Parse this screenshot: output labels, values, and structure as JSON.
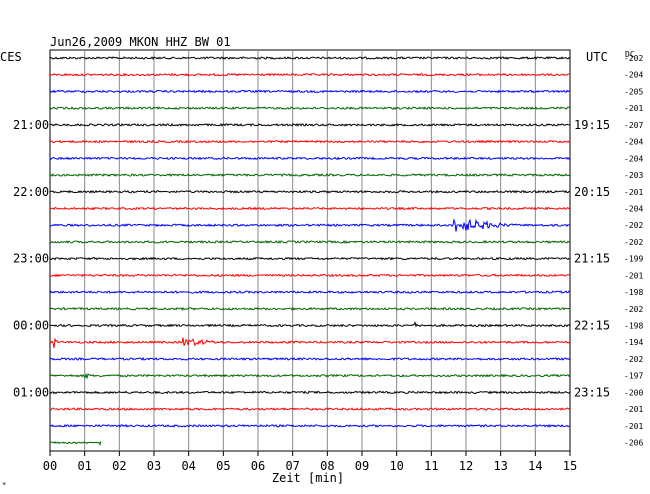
{
  "header": {
    "title": "Jun26,2009  MKON HHZ BW 01",
    "left_tz": "CES",
    "right_tz": "UTC",
    "dc_label": "DC"
  },
  "chart_data": {
    "type": "seismogram",
    "xlabel": "Zeit [min]",
    "xlim": [
      0,
      15
    ],
    "x_ticks": [
      "00",
      "01",
      "02",
      "03",
      "04",
      "05",
      "06",
      "07",
      "08",
      "09",
      "10",
      "11",
      "12",
      "13",
      "14",
      "15"
    ],
    "trace_count": 24,
    "trace_colors": [
      "#000000",
      "#ff0000",
      "#0000ff",
      "#006600"
    ],
    "left_time_labels": [
      {
        "trace": 4,
        "text": "21:00"
      },
      {
        "trace": 8,
        "text": "22:00"
      },
      {
        "trace": 12,
        "text": "23:00"
      },
      {
        "trace": 16,
        "text": "00:00"
      },
      {
        "trace": 20,
        "text": "01:00"
      }
    ],
    "right_time_labels": [
      {
        "trace": 4,
        "text": "19:15"
      },
      {
        "trace": 8,
        "text": "20:15"
      },
      {
        "trace": 12,
        "text": "21:15"
      },
      {
        "trace": 16,
        "text": "22:15"
      },
      {
        "trace": 20,
        "text": "23:15"
      }
    ],
    "dc_offsets": [
      "-202",
      "-204",
      "-205",
      "-201",
      "-207",
      "-204",
      "-204",
      "-203",
      "-201",
      "-204",
      "-202",
      "-202",
      "-199",
      "-201",
      "-198",
      "-202",
      "-198",
      "-194",
      "-202",
      "-197",
      "-200",
      "-201",
      "-201",
      "-206"
    ],
    "events": [
      {
        "trace": 10,
        "minute": 11.6,
        "duration": 2.0,
        "amplitude": 7
      },
      {
        "trace": 17,
        "minute": 3.8,
        "duration": 1.2,
        "amplitude": 4
      },
      {
        "trace": 17,
        "minute": 0.1,
        "duration": 0.15,
        "amplitude": 6
      },
      {
        "trace": 16,
        "minute": 10.5,
        "duration": 0.15,
        "amplitude": 3
      },
      {
        "trace": 19,
        "minute": 1.0,
        "duration": 0.2,
        "amplitude": 3
      },
      {
        "trace": 23,
        "minute": 1.4,
        "duration": 0.1,
        "amplitude": 3
      }
    ]
  }
}
